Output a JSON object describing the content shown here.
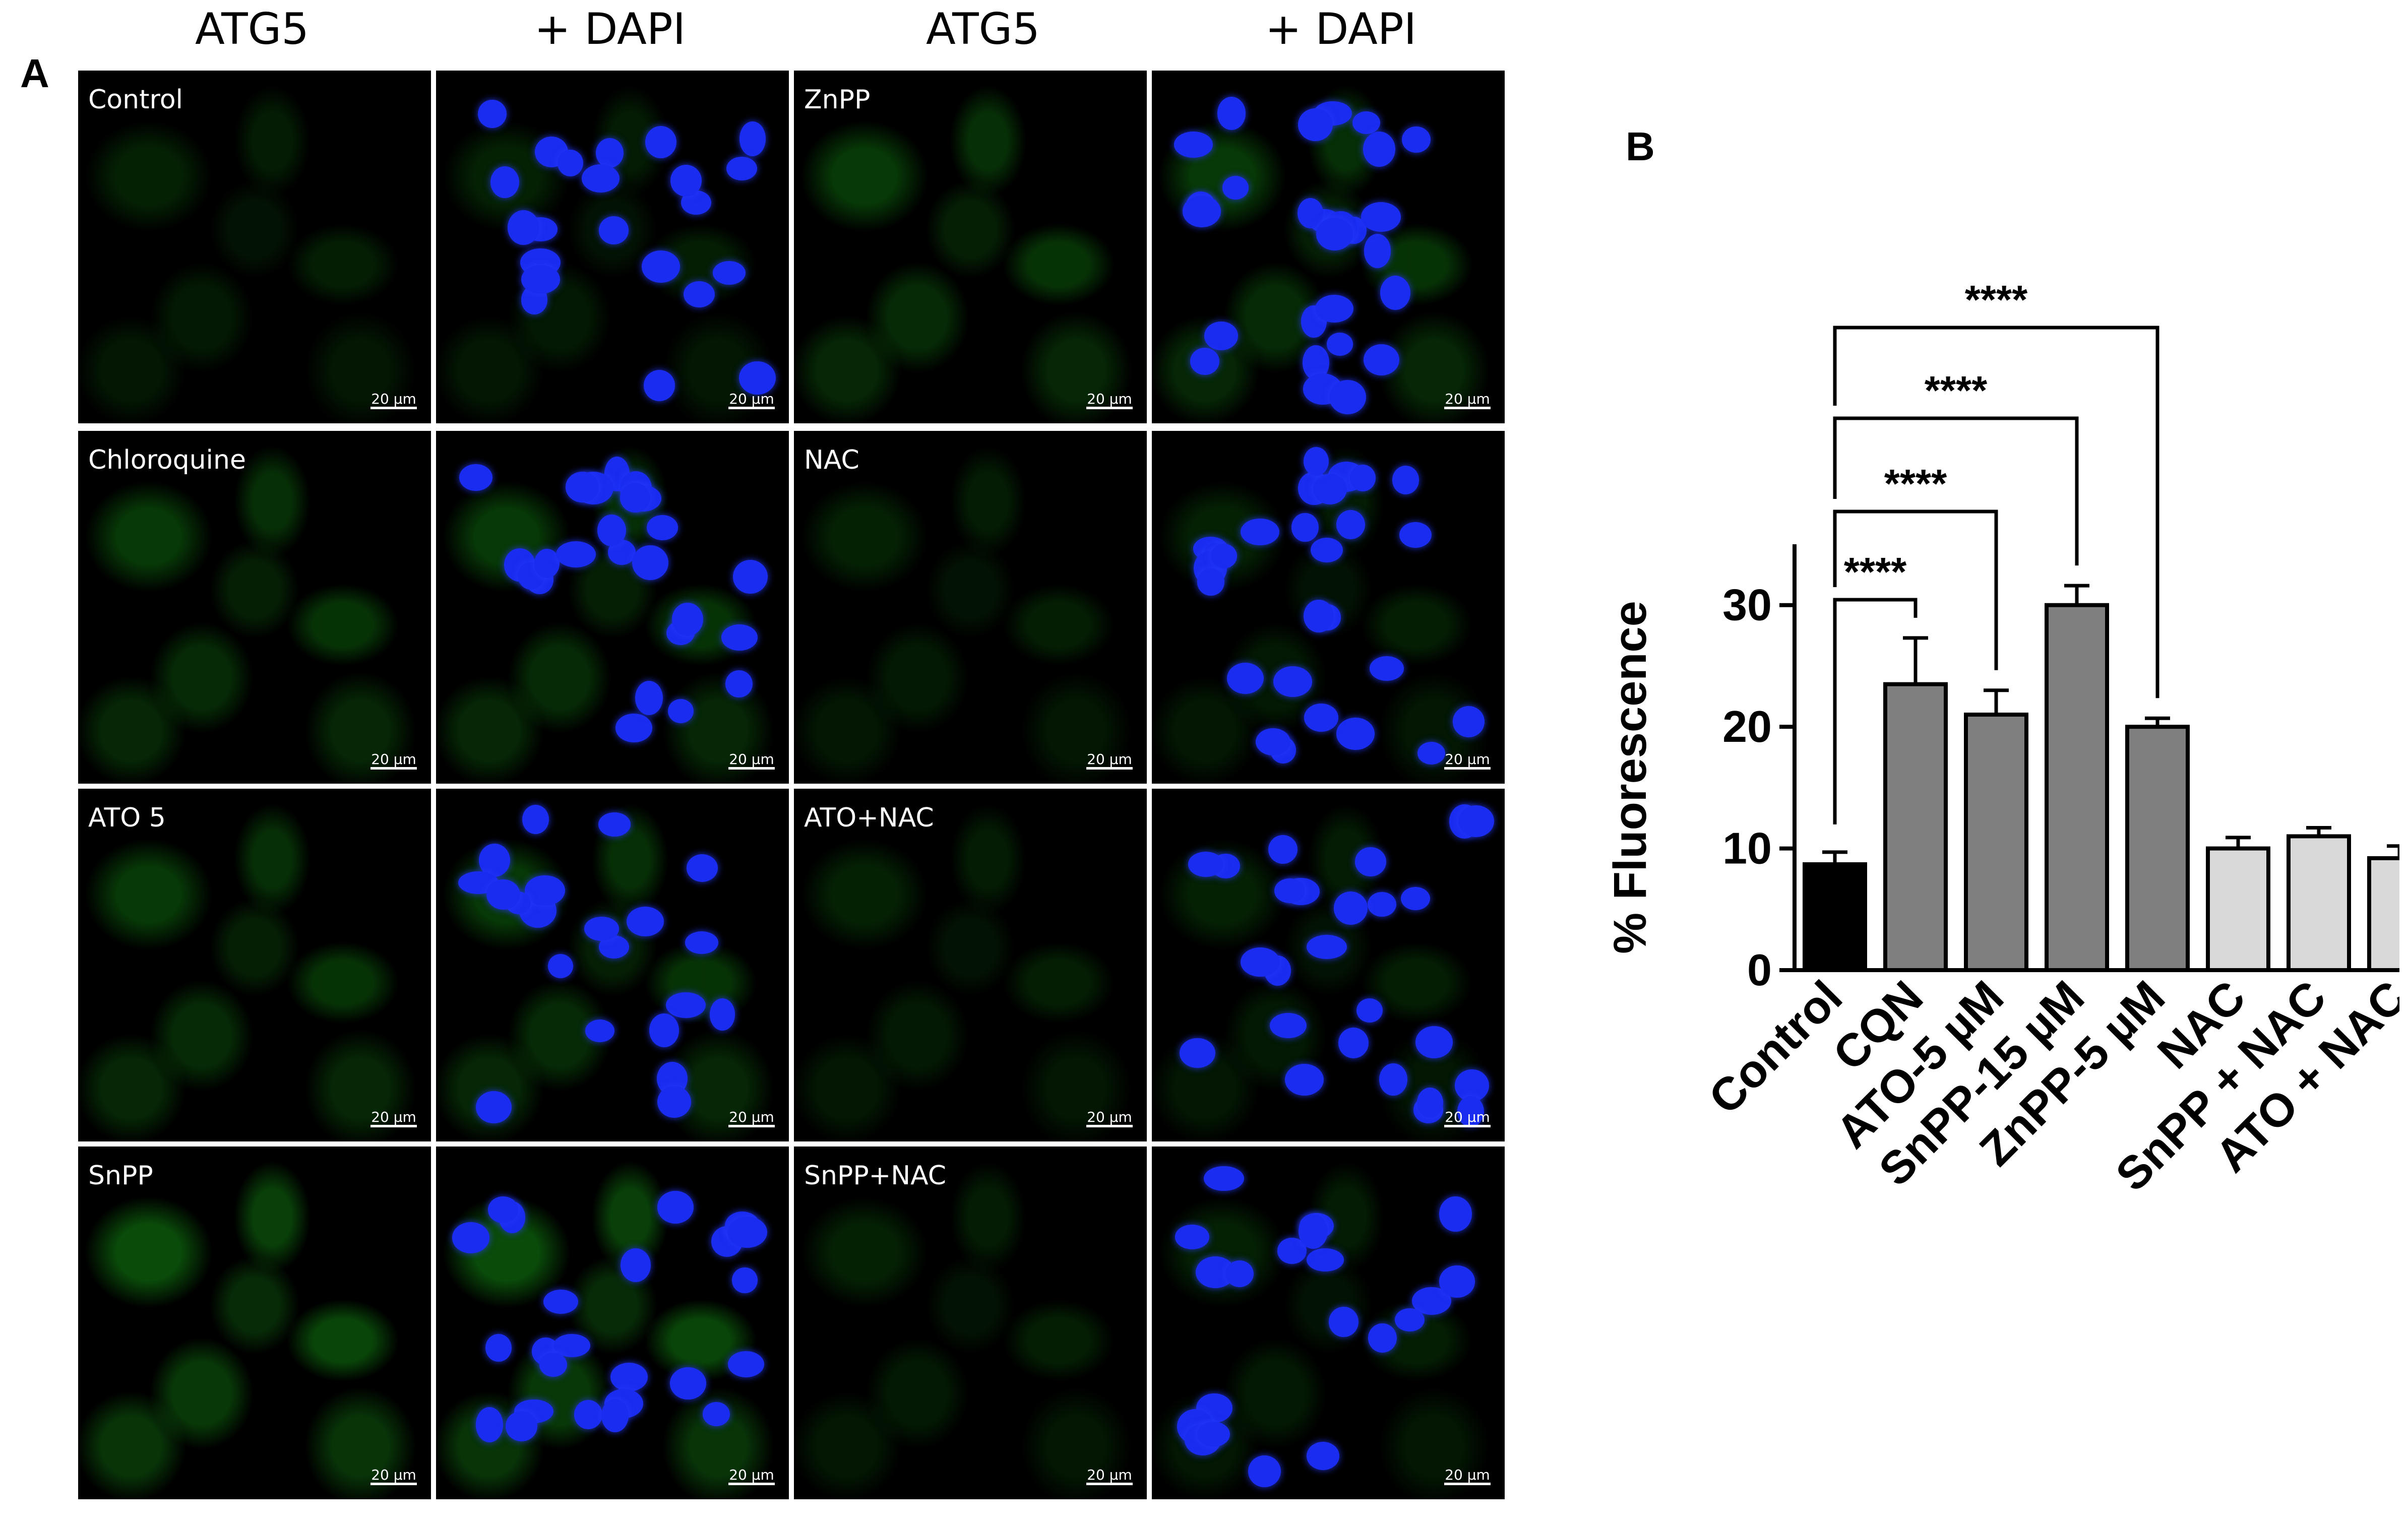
{
  "panel_a": {
    "letter": "A",
    "column_headers": [
      "ATG5",
      "+ DAPI",
      "ATG5",
      "+ DAPI"
    ],
    "rows": [
      {
        "left_label": "Control",
        "right_label": "ZnPP"
      },
      {
        "left_label": "Chloroquine",
        "right_label": "NAC"
      },
      {
        "left_label": "ATO 5",
        "right_label": "ATO+NAC"
      },
      {
        "left_label": "SnPP",
        "right_label": "SnPP+NAC"
      }
    ],
    "scale_bar_label": "20 µm",
    "channel_colors": {
      "atg5": "#1f9a1f",
      "dapi": "#1a2cf0"
    }
  },
  "panel_b": {
    "letter": "B"
  },
  "chart_data": {
    "type": "bar",
    "ylabel": "% Fluorescence",
    "xlabel": "",
    "ylim": [
      0,
      35
    ],
    "yticks": [
      0,
      10,
      20,
      30
    ],
    "grid": false,
    "categories": [
      "Control",
      "CQN",
      "ATO-5 µM",
      "SnPP-15 µM",
      "ZnPP-5 µM",
      "NAC",
      "SnPP + NAC",
      "ATO + NAC"
    ],
    "values": [
      8.7,
      23.5,
      21.0,
      30.0,
      20.0,
      10.0,
      11.0,
      9.2
    ],
    "errors": [
      1.0,
      3.8,
      2.0,
      1.6,
      0.7,
      0.9,
      0.7,
      1.0
    ],
    "bar_colors": [
      "#000000",
      "#7f7f7f",
      "#7f7f7f",
      "#7f7f7f",
      "#7f7f7f",
      "#d9d9d9",
      "#d9d9d9",
      "#d9d9d9"
    ],
    "significance": [
      {
        "from": "Control",
        "to": "CQN",
        "label": "****"
      },
      {
        "from": "Control",
        "to": "ATO-5 µM",
        "label": "****"
      },
      {
        "from": "Control",
        "to": "SnPP-15 µM",
        "label": "****"
      },
      {
        "from": "Control",
        "to": "ZnPP-5 µM",
        "label": "****"
      }
    ]
  }
}
